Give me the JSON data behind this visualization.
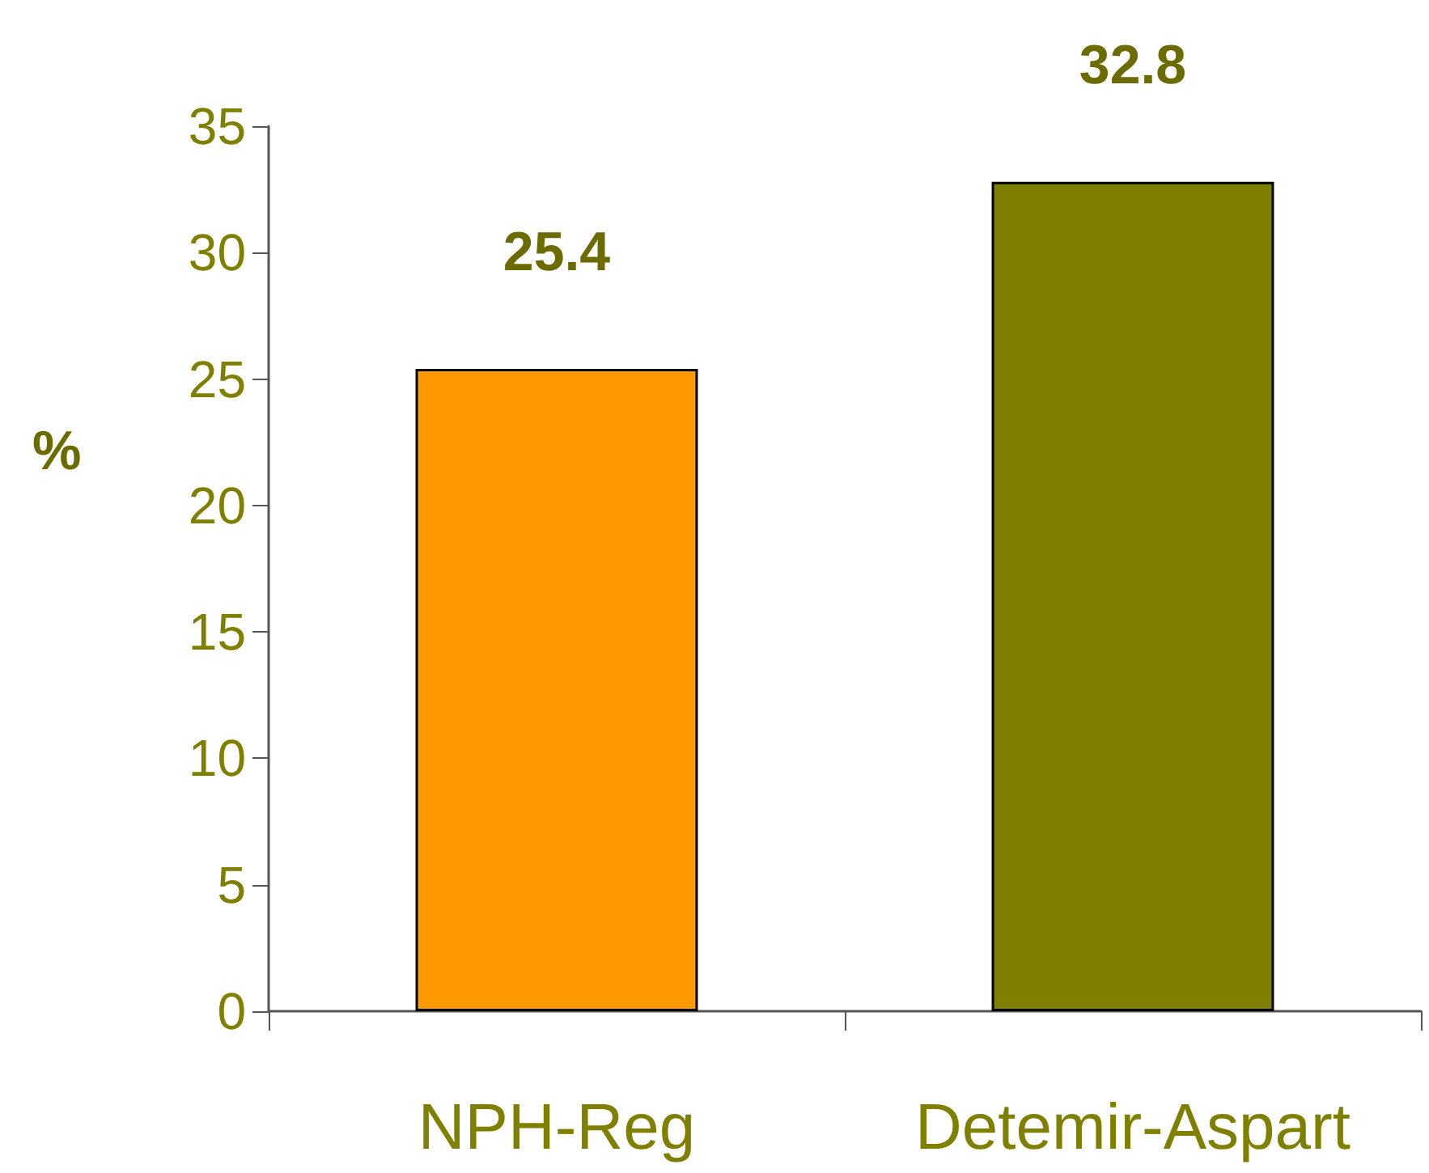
{
  "chart_data": {
    "type": "bar",
    "ylabel": "%",
    "categories": [
      "NPH-Reg",
      "Detemir-Aspart"
    ],
    "values": [
      25.4,
      32.8
    ],
    "colors": [
      "#ff9900",
      "#808000"
    ],
    "ylim": [
      0,
      35
    ],
    "yticks": [
      0,
      5,
      10,
      15,
      20,
      25,
      30,
      35
    ],
    "data_labels": true,
    "grid": false
  }
}
